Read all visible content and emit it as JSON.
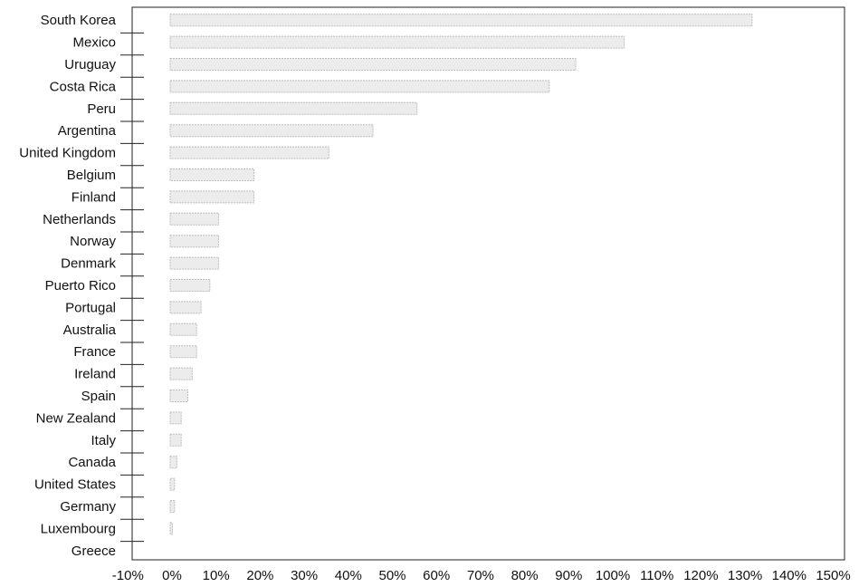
{
  "chart_data": {
    "type": "bar",
    "orientation": "horizontal",
    "categories": [
      "South Korea",
      "Mexico",
      "Uruguay",
      "Costa Rica",
      "Peru",
      "Argentina",
      "United Kingdom",
      "Belgium",
      "Finland",
      "Netherlands",
      "Norway",
      "Denmark",
      "Puerto Rico",
      "Portugal",
      "Australia",
      "France",
      "Ireland",
      "Spain",
      "New Zealand",
      "Italy",
      "Canada",
      "United States",
      "Germany",
      "Luxembourg",
      "Greece"
    ],
    "values": [
      132,
      103,
      92,
      86,
      56,
      46,
      36,
      19,
      19,
      11,
      11,
      11,
      9,
      7,
      6,
      6,
      5,
      4,
      2.5,
      2.5,
      1.5,
      1,
      1,
      0.5,
      0
    ],
    "x_ticks": [
      -10,
      0,
      10,
      20,
      30,
      40,
      50,
      60,
      70,
      80,
      90,
      100,
      110,
      120,
      130,
      140,
      150
    ],
    "x_tick_labels": [
      "-10%",
      "0%",
      "10%",
      "20%",
      "30%",
      "40%",
      "50%",
      "60%",
      "70%",
      "80%",
      "90%",
      "100%",
      "110%",
      "120%",
      "130%",
      "140%",
      "150%"
    ],
    "xlim": [
      -10,
      150
    ],
    "title": "",
    "xlabel": "",
    "ylabel": "",
    "grid": false,
    "bar_color": "#ececec",
    "bar_edge_color": "#bdbdbd"
  }
}
